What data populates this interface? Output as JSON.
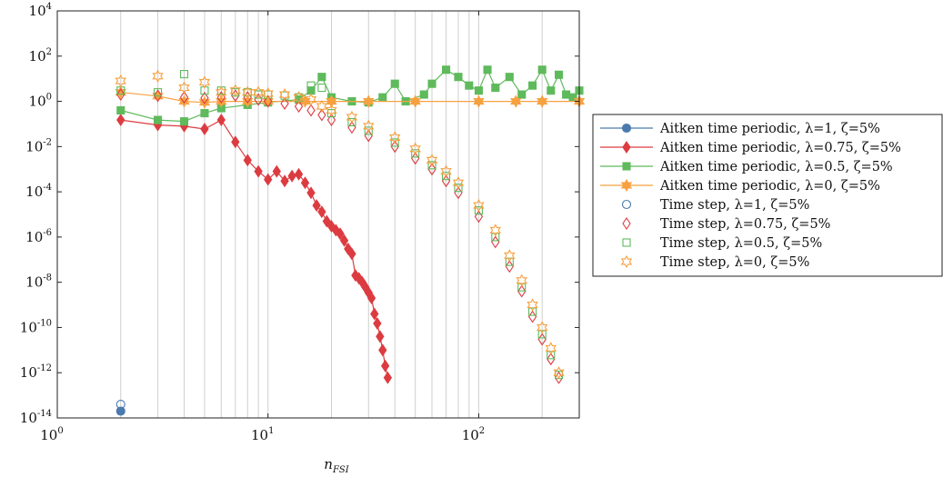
{
  "chart_data": {
    "type": "line",
    "title": "",
    "xlabel": "n",
    "xlabel_sub": "FSI",
    "ylabel": "",
    "xscale": "log",
    "yscale": "log",
    "xlim": [
      1,
      300
    ],
    "ylim": [
      1e-14,
      10000
    ],
    "grid": "vertical minor and major",
    "legend_position": "outside right",
    "x_ticks": [
      {
        "value": 1,
        "base": "10",
        "exp": "0"
      },
      {
        "value": 10,
        "base": "10",
        "exp": "1"
      },
      {
        "value": 100,
        "base": "10",
        "exp": "2"
      }
    ],
    "y_ticks": [
      {
        "value": 10000,
        "base": "10",
        "exp": "4"
      },
      {
        "value": 100,
        "base": "10",
        "exp": "2"
      },
      {
        "value": 1,
        "base": "10",
        "exp": "0"
      },
      {
        "value": 0.01,
        "base": "10",
        "exp": "-2"
      },
      {
        "value": 0.0001,
        "base": "10",
        "exp": "-4"
      },
      {
        "value": 1e-06,
        "base": "10",
        "exp": "-6"
      },
      {
        "value": 1e-08,
        "base": "10",
        "exp": "-8"
      },
      {
        "value": 1e-10,
        "base": "10",
        "exp": "-10"
      },
      {
        "value": 1e-12,
        "base": "10",
        "exp": "-12"
      },
      {
        "value": 1e-14,
        "base": "10",
        "exp": "-14"
      }
    ],
    "series": [
      {
        "name": "Aitken time periodic, λ=1, ζ=5%",
        "color": "#4a7aae",
        "marker": "circle",
        "filled": true,
        "line": true,
        "points": [
          [
            2,
            2e-14
          ]
        ]
      },
      {
        "name": "Aitken time periodic, λ=0.75, ζ=5%",
        "color": "#dc3c41",
        "marker": "diamond",
        "filled": true,
        "line": true,
        "points": [
          [
            2,
            0.15
          ],
          [
            3,
            0.09
          ],
          [
            4,
            0.08
          ],
          [
            5,
            0.06
          ],
          [
            6,
            0.15
          ],
          [
            7,
            0.016
          ],
          [
            8,
            0.0025
          ],
          [
            9,
            0.0008
          ],
          [
            10,
            0.00035
          ],
          [
            11,
            0.0008
          ],
          [
            12,
            0.0003
          ],
          [
            13,
            0.0005
          ],
          [
            14,
            0.0006
          ],
          [
            15,
            0.00025
          ],
          [
            16,
            9e-05
          ],
          [
            17,
            2.5e-05
          ],
          [
            18,
            1.3e-05
          ],
          [
            19,
            5e-06
          ],
          [
            20,
            3e-06
          ],
          [
            21,
            2e-06
          ],
          [
            22,
            1.4e-06
          ],
          [
            23,
            7e-07
          ],
          [
            24,
            3e-07
          ],
          [
            25,
            1.8e-07
          ],
          [
            26,
            2e-08
          ],
          [
            27,
            1.5e-08
          ],
          [
            28,
            1e-08
          ],
          [
            29,
            6e-09
          ],
          [
            30,
            3.5e-09
          ],
          [
            31,
            2e-09
          ],
          [
            32,
            4e-10
          ],
          [
            33,
            1.5e-10
          ],
          [
            34,
            4e-11
          ],
          [
            35,
            1e-11
          ],
          [
            36,
            2e-12
          ],
          [
            37,
            6e-13
          ]
        ]
      },
      {
        "name": "Aitken time periodic, λ=0.5, ζ=5%",
        "color": "#5fba5c",
        "marker": "square",
        "filled": true,
        "line": true,
        "points": [
          [
            2,
            0.4
          ],
          [
            3,
            0.15
          ],
          [
            4,
            0.13
          ],
          [
            5,
            0.3
          ],
          [
            6,
            0.5
          ],
          [
            8,
            0.7
          ],
          [
            10,
            0.9
          ],
          [
            14,
            1.2
          ],
          [
            16,
            3
          ],
          [
            18,
            12
          ],
          [
            20,
            1.5
          ],
          [
            25,
            1.0
          ],
          [
            30,
            0.9
          ],
          [
            35,
            1.5
          ],
          [
            40,
            6
          ],
          [
            45,
            1.0
          ],
          [
            55,
            2
          ],
          [
            60,
            6
          ],
          [
            70,
            25
          ],
          [
            80,
            12
          ],
          [
            90,
            5
          ],
          [
            100,
            3
          ],
          [
            110,
            25
          ],
          [
            120,
            4
          ],
          [
            140,
            12
          ],
          [
            160,
            2
          ],
          [
            180,
            5
          ],
          [
            200,
            25
          ],
          [
            220,
            3
          ],
          [
            240,
            15
          ],
          [
            260,
            2
          ],
          [
            280,
            1.5
          ],
          [
            300,
            3
          ]
        ]
      },
      {
        "name": "Aitken time periodic, λ=0, ζ=5%",
        "color": "#f7a140",
        "marker": "star",
        "filled": true,
        "line": true,
        "points": [
          [
            2,
            2.5
          ],
          [
            3,
            1.7
          ],
          [
            4,
            1.0
          ],
          [
            5,
            0.9
          ],
          [
            6,
            1.0
          ],
          [
            8,
            1.0
          ],
          [
            10,
            1.0
          ],
          [
            15,
            1.0
          ],
          [
            20,
            1.0
          ],
          [
            30,
            1.0
          ],
          [
            50,
            1.0
          ],
          [
            100,
            1.0
          ],
          [
            150,
            1.0
          ],
          [
            200,
            1.0
          ],
          [
            300,
            1.0
          ]
        ]
      },
      {
        "name": "Time step, λ=1, ζ=5%",
        "color": "#4a7aae",
        "marker": "circle",
        "filled": false,
        "line": false,
        "points": [
          [
            2,
            4e-14
          ]
        ]
      },
      {
        "name": "Time step, λ=0.75, ζ=5%",
        "color": "#dc3c41",
        "marker": "diamond",
        "filled": false,
        "line": false,
        "points": [
          [
            2,
            2
          ],
          [
            3,
            1.8
          ],
          [
            4,
            1.5
          ],
          [
            5,
            1.4
          ],
          [
            6,
            1.5
          ],
          [
            7,
            1.8
          ],
          [
            8,
            1.5
          ],
          [
            9,
            1.2
          ],
          [
            10,
            1.0
          ],
          [
            12,
            0.8
          ],
          [
            14,
            0.6
          ],
          [
            16,
            0.4
          ],
          [
            18,
            0.25
          ],
          [
            20,
            0.15
          ],
          [
            25,
            0.07
          ],
          [
            30,
            0.03
          ],
          [
            40,
            0.01
          ],
          [
            50,
            0.003
          ],
          [
            60,
            0.001
          ],
          [
            70,
            0.0003
          ],
          [
            80,
            9e-05
          ],
          [
            100,
            8e-06
          ],
          [
            120,
            6e-07
          ],
          [
            140,
            5e-08
          ],
          [
            160,
            4e-09
          ],
          [
            180,
            3e-10
          ],
          [
            200,
            3e-11
          ],
          [
            220,
            4e-12
          ],
          [
            240,
            6e-13
          ]
        ]
      },
      {
        "name": "Time step, λ=0.5, ζ=5%",
        "color": "#5fba5c",
        "marker": "square",
        "filled": false,
        "line": false,
        "points": [
          [
            2,
            3
          ],
          [
            3,
            2.5
          ],
          [
            4,
            16
          ],
          [
            5,
            3
          ],
          [
            6,
            3
          ],
          [
            7,
            2.5
          ],
          [
            8,
            2.5
          ],
          [
            9,
            2
          ],
          [
            10,
            2
          ],
          [
            12,
            1.8
          ],
          [
            14,
            1.5
          ],
          [
            16,
            5
          ],
          [
            18,
            4
          ],
          [
            20,
            0.3
          ],
          [
            25,
            0.12
          ],
          [
            30,
            0.05
          ],
          [
            40,
            0.015
          ],
          [
            50,
            0.005
          ],
          [
            60,
            0.0015
          ],
          [
            70,
            0.0005
          ],
          [
            80,
            0.00015
          ],
          [
            100,
            1.5e-05
          ],
          [
            120,
            1e-06
          ],
          [
            140,
            8e-08
          ],
          [
            160,
            6e-09
          ],
          [
            180,
            5e-10
          ],
          [
            200,
            5e-11
          ],
          [
            220,
            6e-12
          ],
          [
            240,
            8e-13
          ]
        ]
      },
      {
        "name": "Time step, λ=0, ζ=5%",
        "color": "#f7a140",
        "marker": "star",
        "filled": false,
        "line": false,
        "points": [
          [
            2,
            8
          ],
          [
            3,
            13
          ],
          [
            4,
            4
          ],
          [
            5,
            7
          ],
          [
            6,
            2.5
          ],
          [
            7,
            3
          ],
          [
            8,
            2.5
          ],
          [
            9,
            2.5
          ],
          [
            10,
            2.2
          ],
          [
            12,
            2
          ],
          [
            14,
            1.5
          ],
          [
            16,
            1.2
          ],
          [
            18,
            0.6
          ],
          [
            20,
            0.4
          ],
          [
            25,
            0.2
          ],
          [
            30,
            0.08
          ],
          [
            40,
            0.025
          ],
          [
            50,
            0.008
          ],
          [
            60,
            0.0025
          ],
          [
            70,
            0.0008
          ],
          [
            80,
            0.00025
          ],
          [
            100,
            2.5e-05
          ],
          [
            120,
            2e-06
          ],
          [
            140,
            1.5e-07
          ],
          [
            160,
            1.2e-08
          ],
          [
            180,
            1e-09
          ],
          [
            200,
            1e-10
          ],
          [
            220,
            1.2e-11
          ],
          [
            240,
            1e-12
          ]
        ]
      }
    ]
  }
}
